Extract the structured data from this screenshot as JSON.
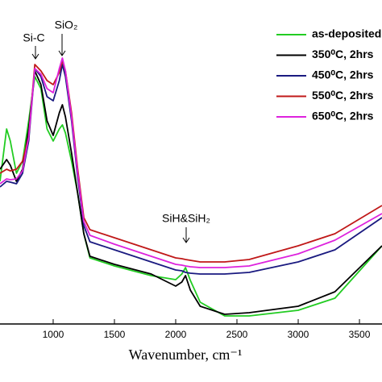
{
  "chart_data": {
    "type": "line",
    "xlabel": "Wavenumber, cm⁻¹",
    "annotations": [
      "Si-C",
      "SiO₂",
      "SiH&SiH₂"
    ],
    "x": [
      566,
      620,
      650,
      700,
      750,
      800,
      850,
      900,
      950,
      1000,
      1050,
      1075,
      1100,
      1150,
      1200,
      1250,
      1300,
      1500,
      1800,
      2000,
      2050,
      2080,
      2120,
      2200,
      2400,
      2600,
      3000,
      3300,
      3684
    ],
    "xlim": [
      566,
      3684
    ],
    "xticks": [
      1000,
      1500,
      2000,
      2500,
      3000,
      3500
    ],
    "ylim": [
      0,
      402
    ],
    "legend": "upper right",
    "series": [
      {
        "name": "as-deposited",
        "color": "#22cc22",
        "values": [
          177,
          242,
          227,
          187,
          202,
          252,
          307,
          292,
          242,
          227,
          242,
          247,
          237,
          202,
          162,
          112,
          82,
          72,
          60,
          55,
          62,
          70,
          54,
          27,
          10,
          10,
          17,
          32,
          97
        ]
      },
      {
        "name": "350⁰C, 2hrs",
        "color": "#000000",
        "values": [
          192,
          204,
          197,
          177,
          192,
          242,
          314,
          297,
          252,
          234,
          262,
          272,
          257,
          212,
          162,
          112,
          84,
          74,
          62,
          47,
          52,
          60,
          42,
          22,
          12,
          14,
          22,
          40,
          97
        ]
      },
      {
        "name": "450⁰C, 2hrs",
        "color": "#1a1a80",
        "values": [
          170,
          177,
          176,
          174,
          187,
          227,
          317,
          307,
          282,
          277,
          302,
          322,
          307,
          252,
          182,
          122,
          102,
          92,
          77,
          67,
          66,
          64,
          63,
          62,
          62,
          64,
          77,
          92,
          132
        ]
      },
      {
        "name": "550⁰C, 2hrs",
        "color": "#c01818",
        "values": [
          187,
          192,
          190,
          192,
          202,
          232,
          322,
          314,
          302,
          297,
          312,
          327,
          314,
          262,
          192,
          132,
          117,
          107,
          92,
          82,
          81,
          80,
          79,
          77,
          77,
          80,
          97,
          112,
          147
        ]
      },
      {
        "name": "650⁰C, 2hrs",
        "color": "#dd22dd",
        "values": [
          174,
          180,
          179,
          180,
          190,
          232,
          317,
          310,
          292,
          287,
          317,
          330,
          314,
          257,
          187,
          127,
          110,
          99,
          84,
          74,
          73,
          72,
          71,
          70,
          70,
          72,
          87,
          104,
          137
        ]
      }
    ]
  }
}
